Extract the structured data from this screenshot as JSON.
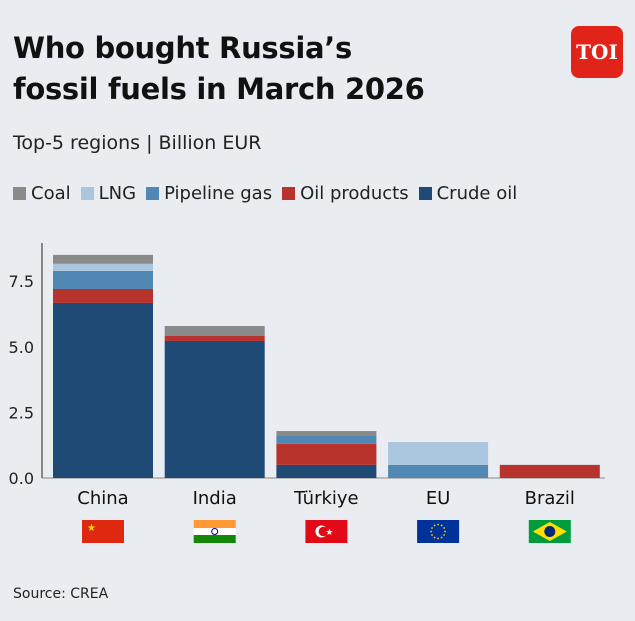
{
  "header": {
    "title_line1": "Who bought Russia’s",
    "title_line2": "fossil fuels in March 2026",
    "subtitle": "Top-5 regions | Billion EUR",
    "logo": "TOI"
  },
  "source": "Source: CREA",
  "chart_data": {
    "type": "bar",
    "stacked": true,
    "categories": [
      "China",
      "India",
      "Türkiye",
      "EU",
      "Brazil"
    ],
    "category_flags": [
      "flag-china-icon",
      "flag-india-icon",
      "flag-turkiye-icon",
      "flag-eu-icon",
      "flag-brazil-icon"
    ],
    "ylim": [
      0,
      8.7
    ],
    "yticks": [
      "0.0",
      "2.5",
      "5.0",
      "7.5"
    ],
    "ytick_values": [
      0,
      2.5,
      5,
      7.5
    ],
    "grid": false,
    "legend": "top",
    "series": [
      {
        "name": "Crude oil",
        "color": "#1f4a75",
        "values": [
          6.67,
          5.22,
          0.5,
          0,
          0
        ]
      },
      {
        "name": "Oil products",
        "color": "#b7332c",
        "values": [
          0.53,
          0.19,
          0.8,
          0,
          0.5
        ]
      },
      {
        "name": "Pipeline gas",
        "color": "#5187b3",
        "values": [
          0.69,
          0,
          0.3,
          0.5,
          0
        ]
      },
      {
        "name": "LNG",
        "color": "#a9c6de",
        "values": [
          0.27,
          0,
          0,
          0.87,
          0
        ]
      },
      {
        "name": "Coal",
        "color": "#8a8a8a",
        "values": [
          0.34,
          0.38,
          0.19,
          0,
          0
        ]
      }
    ],
    "legend_order": [
      "Coal",
      "LNG",
      "Pipeline gas",
      "Oil products",
      "Crude oil"
    ]
  }
}
